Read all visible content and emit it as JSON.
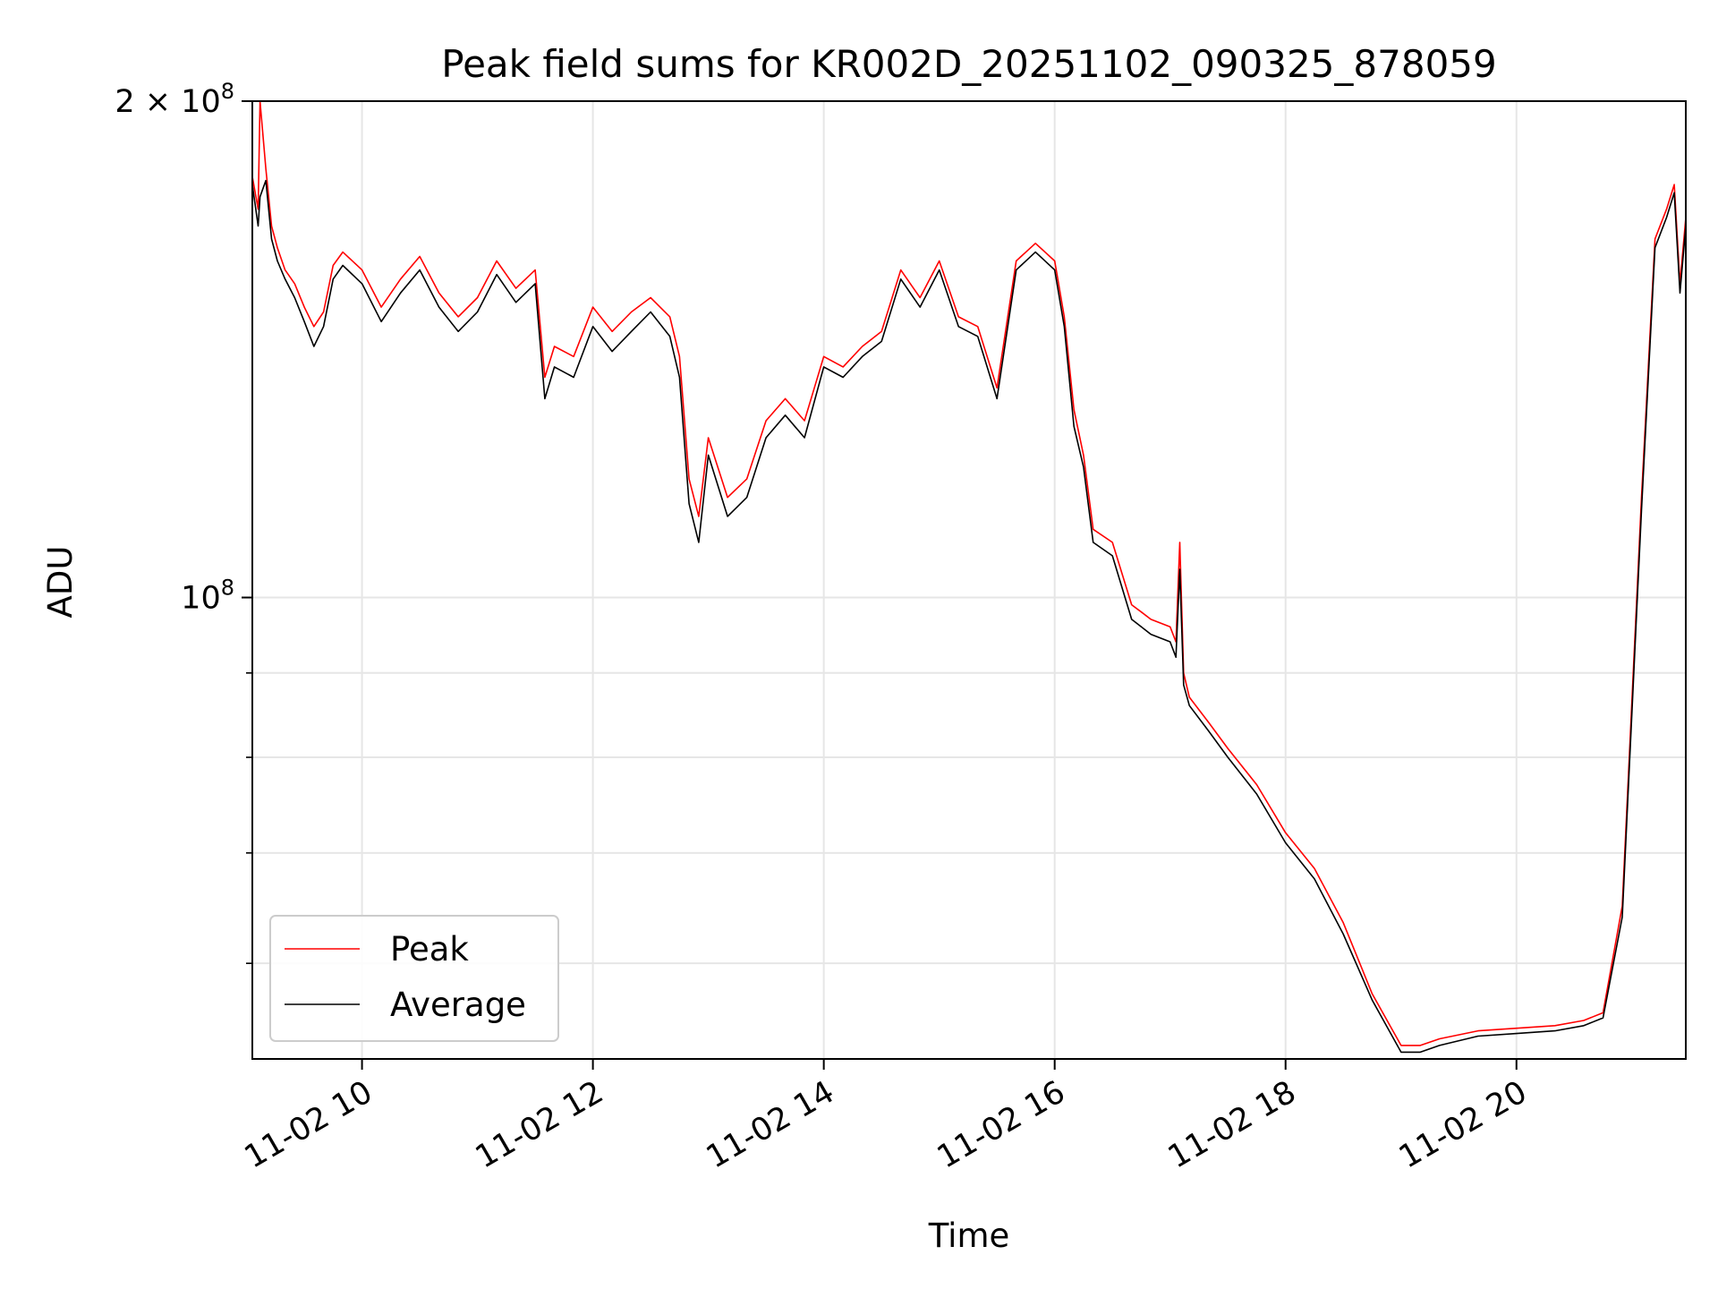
{
  "chart_data": {
    "type": "line",
    "title": "Peak field sums for KR002D_20251102_090325_878059",
    "xlabel": "Time",
    "ylabel": "ADU",
    "yscale": "log",
    "ylim": [
      52500000,
      200000000
    ],
    "xlim": [
      "2025-11-02 09:03",
      "2025-11-02 21:28"
    ],
    "grid": true,
    "legend_position": "lower-left",
    "x_tick_labels": [
      "11-02 10",
      "11-02 12",
      "11-02 14",
      "11-02 16",
      "11-02 18",
      "11-02 20"
    ],
    "x_tick_times": [
      "2025-11-02 10:00",
      "2025-11-02 12:00",
      "2025-11-02 14:00",
      "2025-11-02 16:00",
      "2025-11-02 18:00",
      "2025-11-02 20:00"
    ],
    "y_tick_labels": [
      {
        "value": 200000000,
        "base": "2 × 10",
        "exp": "8"
      },
      {
        "value": 100000000,
        "base": "10",
        "exp": "8"
      }
    ],
    "y_minor_ticks": [
      60000000,
      70000000,
      80000000,
      90000000
    ],
    "series": [
      {
        "name": "Peak",
        "color": "#ff0000",
        "x": [
          "2025-11-02 09:03",
          "2025-11-02 09:06",
          "2025-11-02 09:07",
          "2025-11-02 09:10",
          "2025-11-02 09:13",
          "2025-11-02 09:16",
          "2025-11-02 09:20",
          "2025-11-02 09:25",
          "2025-11-02 09:30",
          "2025-11-02 09:35",
          "2025-11-02 09:40",
          "2025-11-02 09:45",
          "2025-11-02 09:50",
          "2025-11-02 10:00",
          "2025-11-02 10:10",
          "2025-11-02 10:20",
          "2025-11-02 10:30",
          "2025-11-02 10:40",
          "2025-11-02 10:50",
          "2025-11-02 11:00",
          "2025-11-02 11:10",
          "2025-11-02 11:20",
          "2025-11-02 11:30",
          "2025-11-02 11:35",
          "2025-11-02 11:40",
          "2025-11-02 11:50",
          "2025-11-02 12:00",
          "2025-11-02 12:10",
          "2025-11-02 12:20",
          "2025-11-02 12:30",
          "2025-11-02 12:40",
          "2025-11-02 12:45",
          "2025-11-02 12:50",
          "2025-11-02 12:55",
          "2025-11-02 13:00",
          "2025-11-02 13:10",
          "2025-11-02 13:20",
          "2025-11-02 13:30",
          "2025-11-02 13:40",
          "2025-11-02 13:50",
          "2025-11-02 14:00",
          "2025-11-02 14:10",
          "2025-11-02 14:20",
          "2025-11-02 14:30",
          "2025-11-02 14:40",
          "2025-11-02 14:50",
          "2025-11-02 15:00",
          "2025-11-02 15:10",
          "2025-11-02 15:20",
          "2025-11-02 15:30",
          "2025-11-02 15:40",
          "2025-11-02 15:50",
          "2025-11-02 16:00",
          "2025-11-02 16:05",
          "2025-11-02 16:10",
          "2025-11-02 16:15",
          "2025-11-02 16:20",
          "2025-11-02 16:30",
          "2025-11-02 16:40",
          "2025-11-02 16:45",
          "2025-11-02 16:50",
          "2025-11-02 17:00",
          "2025-11-02 17:03",
          "2025-11-02 17:05",
          "2025-11-02 17:07",
          "2025-11-02 17:10",
          "2025-11-02 17:20",
          "2025-11-02 17:30",
          "2025-11-02 17:45",
          "2025-11-02 18:00",
          "2025-11-02 18:15",
          "2025-11-02 18:30",
          "2025-11-02 18:45",
          "2025-11-02 19:00",
          "2025-11-02 19:10",
          "2025-11-02 19:20",
          "2025-11-02 19:40",
          "2025-11-02 20:00",
          "2025-11-02 20:20",
          "2025-11-02 20:35",
          "2025-11-02 20:45",
          "2025-11-02 20:55",
          "2025-11-02 21:05",
          "2025-11-02 21:12",
          "2025-11-02 21:18",
          "2025-11-02 21:22",
          "2025-11-02 21:25",
          "2025-11-02 21:28"
        ],
        "values": [
          180000000,
          172000000,
          200000000,
          182000000,
          168000000,
          163000000,
          158000000,
          155000000,
          150000000,
          146000000,
          149000000,
          159000000,
          162000000,
          158000000,
          150000000,
          156000000,
          161000000,
          153000000,
          148000000,
          152000000,
          160000000,
          154000000,
          158000000,
          136000000,
          142000000,
          140000000,
          150000000,
          145000000,
          149000000,
          152000000,
          148000000,
          140000000,
          118000000,
          112000000,
          125000000,
          115000000,
          118000000,
          128000000,
          132000000,
          128000000,
          140000000,
          138000000,
          142000000,
          145000000,
          158000000,
          152000000,
          160000000,
          148000000,
          146000000,
          134000000,
          160000000,
          164000000,
          160000000,
          148000000,
          130000000,
          122000000,
          110000000,
          108000000,
          99000000,
          98000000,
          97000000,
          96000000,
          94000000,
          108000000,
          90000000,
          87000000,
          84000000,
          81000000,
          77000000,
          72000000,
          68500000,
          63500000,
          57500000,
          53500000,
          53500000,
          54000000,
          54600000,
          54800000,
          55000000,
          55400000,
          56000000,
          65000000,
          115000000,
          165000000,
          172000000,
          178000000,
          155000000,
          170000000
        ]
      },
      {
        "name": "Average",
        "color": "#000000",
        "x": [
          "2025-11-02 09:03",
          "2025-11-02 09:06",
          "2025-11-02 09:07",
          "2025-11-02 09:10",
          "2025-11-02 09:13",
          "2025-11-02 09:16",
          "2025-11-02 09:20",
          "2025-11-02 09:25",
          "2025-11-02 09:30",
          "2025-11-02 09:35",
          "2025-11-02 09:40",
          "2025-11-02 09:45",
          "2025-11-02 09:50",
          "2025-11-02 10:00",
          "2025-11-02 10:10",
          "2025-11-02 10:20",
          "2025-11-02 10:30",
          "2025-11-02 10:40",
          "2025-11-02 10:50",
          "2025-11-02 11:00",
          "2025-11-02 11:10",
          "2025-11-02 11:20",
          "2025-11-02 11:30",
          "2025-11-02 11:35",
          "2025-11-02 11:40",
          "2025-11-02 11:50",
          "2025-11-02 12:00",
          "2025-11-02 12:10",
          "2025-11-02 12:20",
          "2025-11-02 12:30",
          "2025-11-02 12:40",
          "2025-11-02 12:45",
          "2025-11-02 12:50",
          "2025-11-02 12:55",
          "2025-11-02 13:00",
          "2025-11-02 13:10",
          "2025-11-02 13:20",
          "2025-11-02 13:30",
          "2025-11-02 13:40",
          "2025-11-02 13:50",
          "2025-11-02 14:00",
          "2025-11-02 14:10",
          "2025-11-02 14:20",
          "2025-11-02 14:30",
          "2025-11-02 14:40",
          "2025-11-02 14:50",
          "2025-11-02 15:00",
          "2025-11-02 15:10",
          "2025-11-02 15:20",
          "2025-11-02 15:30",
          "2025-11-02 15:40",
          "2025-11-02 15:50",
          "2025-11-02 16:00",
          "2025-11-02 16:05",
          "2025-11-02 16:10",
          "2025-11-02 16:15",
          "2025-11-02 16:20",
          "2025-11-02 16:30",
          "2025-11-02 16:40",
          "2025-11-02 16:45",
          "2025-11-02 16:50",
          "2025-11-02 17:00",
          "2025-11-02 17:03",
          "2025-11-02 17:05",
          "2025-11-02 17:07",
          "2025-11-02 17:10",
          "2025-11-02 17:20",
          "2025-11-02 17:30",
          "2025-11-02 17:45",
          "2025-11-02 18:00",
          "2025-11-02 18:15",
          "2025-11-02 18:30",
          "2025-11-02 18:45",
          "2025-11-02 19:00",
          "2025-11-02 19:10",
          "2025-11-02 19:20",
          "2025-11-02 19:40",
          "2025-11-02 20:00",
          "2025-11-02 20:20",
          "2025-11-02 20:35",
          "2025-11-02 20:45",
          "2025-11-02 20:55",
          "2025-11-02 21:05",
          "2025-11-02 21:12",
          "2025-11-02 21:18",
          "2025-11-02 21:22",
          "2025-11-02 21:25",
          "2025-11-02 21:28"
        ],
        "values": [
          178000000,
          168000000,
          175000000,
          179000000,
          165000000,
          160000000,
          156000000,
          152000000,
          147000000,
          142000000,
          146000000,
          156000000,
          159000000,
          155000000,
          147000000,
          153000000,
          158000000,
          150000000,
          145000000,
          149000000,
          157000000,
          151000000,
          155000000,
          132000000,
          138000000,
          136000000,
          146000000,
          141000000,
          145000000,
          149000000,
          144000000,
          136000000,
          114000000,
          108000000,
          122000000,
          112000000,
          115000000,
          125000000,
          129000000,
          125000000,
          138000000,
          136000000,
          140000000,
          143000000,
          156000000,
          150000000,
          158000000,
          146000000,
          144000000,
          132000000,
          158000000,
          162000000,
          158000000,
          146000000,
          127000000,
          120000000,
          108000000,
          106000000,
          97000000,
          96000000,
          95000000,
          94000000,
          92000000,
          104000000,
          88500000,
          86000000,
          83000000,
          80000000,
          76000000,
          71000000,
          67500000,
          62500000,
          57000000,
          53000000,
          53000000,
          53500000,
          54200000,
          54400000,
          54600000,
          55000000,
          55600000,
          64000000,
          113000000,
          163000000,
          170000000,
          176000000,
          153000000,
          168000000
        ]
      }
    ]
  }
}
